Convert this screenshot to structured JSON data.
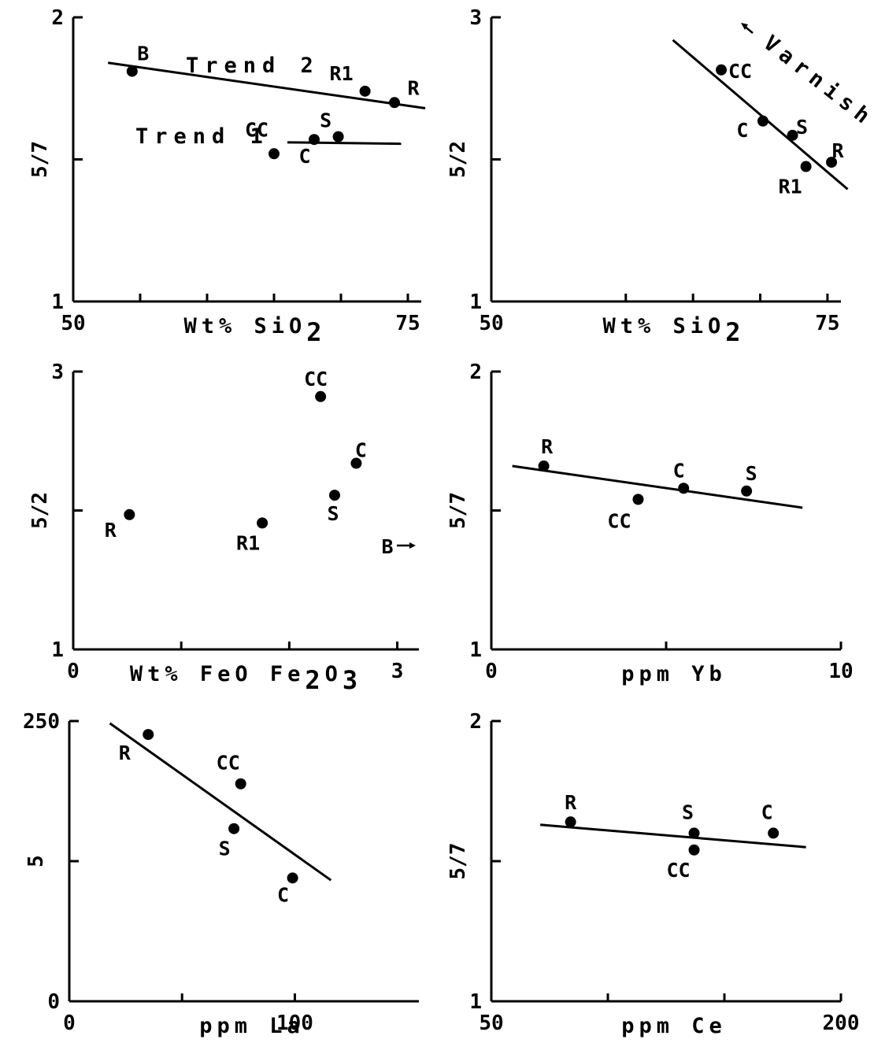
{
  "chart_data": [
    {
      "type": "scatter",
      "id": "a",
      "xlabel": "Wt% SiO",
      "xlabel_sub": "2",
      "ylabel": "5/7",
      "xlim": [
        50,
        76
      ],
      "ylim": [
        1,
        2
      ],
      "xticks": [
        {
          "v": 50,
          "label": "50"
        },
        {
          "v": 75,
          "label": "75"
        }
      ],
      "yticks": [
        {
          "v": 1,
          "label": "1"
        },
        {
          "v": 2,
          "label": "2"
        }
      ],
      "yminor": [
        1.5
      ],
      "xminor": [
        55,
        60,
        65,
        70
      ],
      "points": [
        {
          "x": 54.4,
          "y": 1.81,
          "label": "B"
        },
        {
          "x": 71.8,
          "y": 1.74,
          "label": "R1"
        },
        {
          "x": 74.0,
          "y": 1.7,
          "label": "R"
        },
        {
          "x": 69.8,
          "y": 1.58,
          "label": "S"
        },
        {
          "x": 68.0,
          "y": 1.57,
          "label": "C"
        },
        {
          "x": 65.0,
          "y": 1.52,
          "label": "CC"
        }
      ],
      "lines": [
        {
          "x": [
            52.6,
            76.3
          ],
          "y": [
            1.84,
            1.68
          ]
        },
        {
          "x": [
            66.0,
            74.5
          ],
          "y": [
            1.56,
            1.555
          ]
        }
      ],
      "annotations": [
        "Trend 2",
        "Trend 1"
      ]
    },
    {
      "type": "scatter",
      "id": "b",
      "xlabel": "Wt% SiO",
      "xlabel_sub": "2",
      "ylabel": "5/2",
      "xlim": [
        50,
        76
      ],
      "ylim": [
        1,
        3
      ],
      "xticks": [
        {
          "v": 50,
          "label": "50"
        },
        {
          "v": 75,
          "label": "75"
        }
      ],
      "yticks": [
        {
          "v": 1,
          "label": "1"
        },
        {
          "v": 3,
          "label": "3"
        }
      ],
      "ymid": [
        {
          "v": 2,
          "label": "5"
        }
      ],
      "xminor": [
        60,
        65,
        70
      ],
      "points": [
        {
          "x": 67.1,
          "y": 2.63,
          "label": "CC"
        },
        {
          "x": 70.2,
          "y": 2.27,
          "label": "C"
        },
        {
          "x": 72.4,
          "y": 2.17,
          "label": "S"
        },
        {
          "x": 73.4,
          "y": 1.95,
          "label": "R1"
        },
        {
          "x": 75.3,
          "y": 1.98,
          "label": "R"
        }
      ],
      "lines": [
        {
          "x": [
            63.5,
            76.5
          ],
          "y": [
            2.84,
            1.79
          ]
        }
      ],
      "annotations": [
        "Varnish"
      ]
    },
    {
      "type": "scatter",
      "id": "c",
      "xlabel": "Wt% FeO Fe",
      "xlabel_sub": "2",
      "xlabel_mid": "O",
      "xlabel_sub2": "3",
      "ylabel": "5/2",
      "xlim": [
        0,
        3.2
      ],
      "ylim": [
        1,
        3
      ],
      "xticks": [
        {
          "v": 0,
          "label": "0"
        },
        {
          "v": 3,
          "label": "3"
        }
      ],
      "yticks": [
        {
          "v": 1,
          "label": "1"
        },
        {
          "v": 3,
          "label": "3"
        }
      ],
      "ymid": [
        {
          "v": 2,
          "label": "5"
        }
      ],
      "xminor": [
        1,
        2
      ],
      "points": [
        {
          "x": 0.52,
          "y": 1.97,
          "label": "R"
        },
        {
          "x": 1.75,
          "y": 1.91,
          "label": "R1"
        },
        {
          "x": 2.42,
          "y": 2.11,
          "label": "S"
        },
        {
          "x": 2.29,
          "y": 2.82,
          "label": "CC"
        },
        {
          "x": 2.62,
          "y": 2.34,
          "label": "C"
        }
      ],
      "annotations": [
        "B"
      ]
    },
    {
      "type": "scatter",
      "id": "d",
      "xlabel": "ppm Yb",
      "ylabel": "5/7",
      "xlim": [
        0,
        10
      ],
      "ylim": [
        1,
        2
      ],
      "xticks": [
        {
          "v": 0,
          "label": "0"
        },
        {
          "v": 10,
          "label": "10"
        }
      ],
      "yticks": [
        {
          "v": 1,
          "label": "1"
        },
        {
          "v": 2,
          "label": "2"
        }
      ],
      "ymid": [
        {
          "v": 1.5,
          "label": "5"
        }
      ],
      "xminor": [
        5
      ],
      "points": [
        {
          "x": 1.5,
          "y": 1.66,
          "label": "R"
        },
        {
          "x": 4.2,
          "y": 1.54,
          "label": "CC"
        },
        {
          "x": 5.5,
          "y": 1.58,
          "label": "C"
        },
        {
          "x": 7.3,
          "y": 1.57,
          "label": "S"
        }
      ],
      "lines": [
        {
          "x": [
            0.6,
            8.9
          ],
          "y": [
            1.66,
            1.51
          ]
        }
      ]
    },
    {
      "type": "scatter",
      "id": "e",
      "xlabel": "ppm La",
      "ylabel": "",
      "xlim": [
        0,
        155
      ],
      "ylim": [
        0,
        250
      ],
      "xticks": [
        {
          "v": 0,
          "label": "0"
        },
        {
          "v": 100,
          "label": "100"
        }
      ],
      "yticks": [
        {
          "v": 0,
          "label": "0"
        },
        {
          "v": 250,
          "label": "250"
        }
      ],
      "ymid": [
        {
          "v": 125,
          "label": "5"
        }
      ],
      "xminor": [
        50
      ],
      "points": [
        {
          "x": 35,
          "y": 238,
          "label": "R"
        },
        {
          "x": 76,
          "y": 194,
          "label": "CC"
        },
        {
          "x": 73,
          "y": 154,
          "label": "S"
        },
        {
          "x": 99,
          "y": 110,
          "label": "C"
        }
      ],
      "lines": [
        {
          "x": [
            18,
            116
          ],
          "y": [
            248,
            108
          ]
        }
      ]
    },
    {
      "type": "scatter",
      "id": "f",
      "xlabel": "ppm Ce",
      "ylabel": "5/7",
      "xlim": [
        50,
        200
      ],
      "ylim": [
        1,
        2
      ],
      "xticks": [
        {
          "v": 50,
          "label": "50"
        },
        {
          "v": 200,
          "label": "200"
        }
      ],
      "yticks": [
        {
          "v": 1,
          "label": "1"
        },
        {
          "v": 2,
          "label": "2"
        }
      ],
      "ymid": [
        {
          "v": 1.5,
          "label": "5/7"
        }
      ],
      "xminor": [
        100,
        150
      ],
      "points": [
        {
          "x": 84,
          "y": 1.64,
          "label": "R"
        },
        {
          "x": 137,
          "y": 1.6,
          "label": "S"
        },
        {
          "x": 137,
          "y": 1.54,
          "label": "CC"
        },
        {
          "x": 171,
          "y": 1.6,
          "label": "C"
        }
      ],
      "lines": [
        {
          "x": [
            71,
            185
          ],
          "y": [
            1.63,
            1.55
          ]
        }
      ]
    }
  ]
}
